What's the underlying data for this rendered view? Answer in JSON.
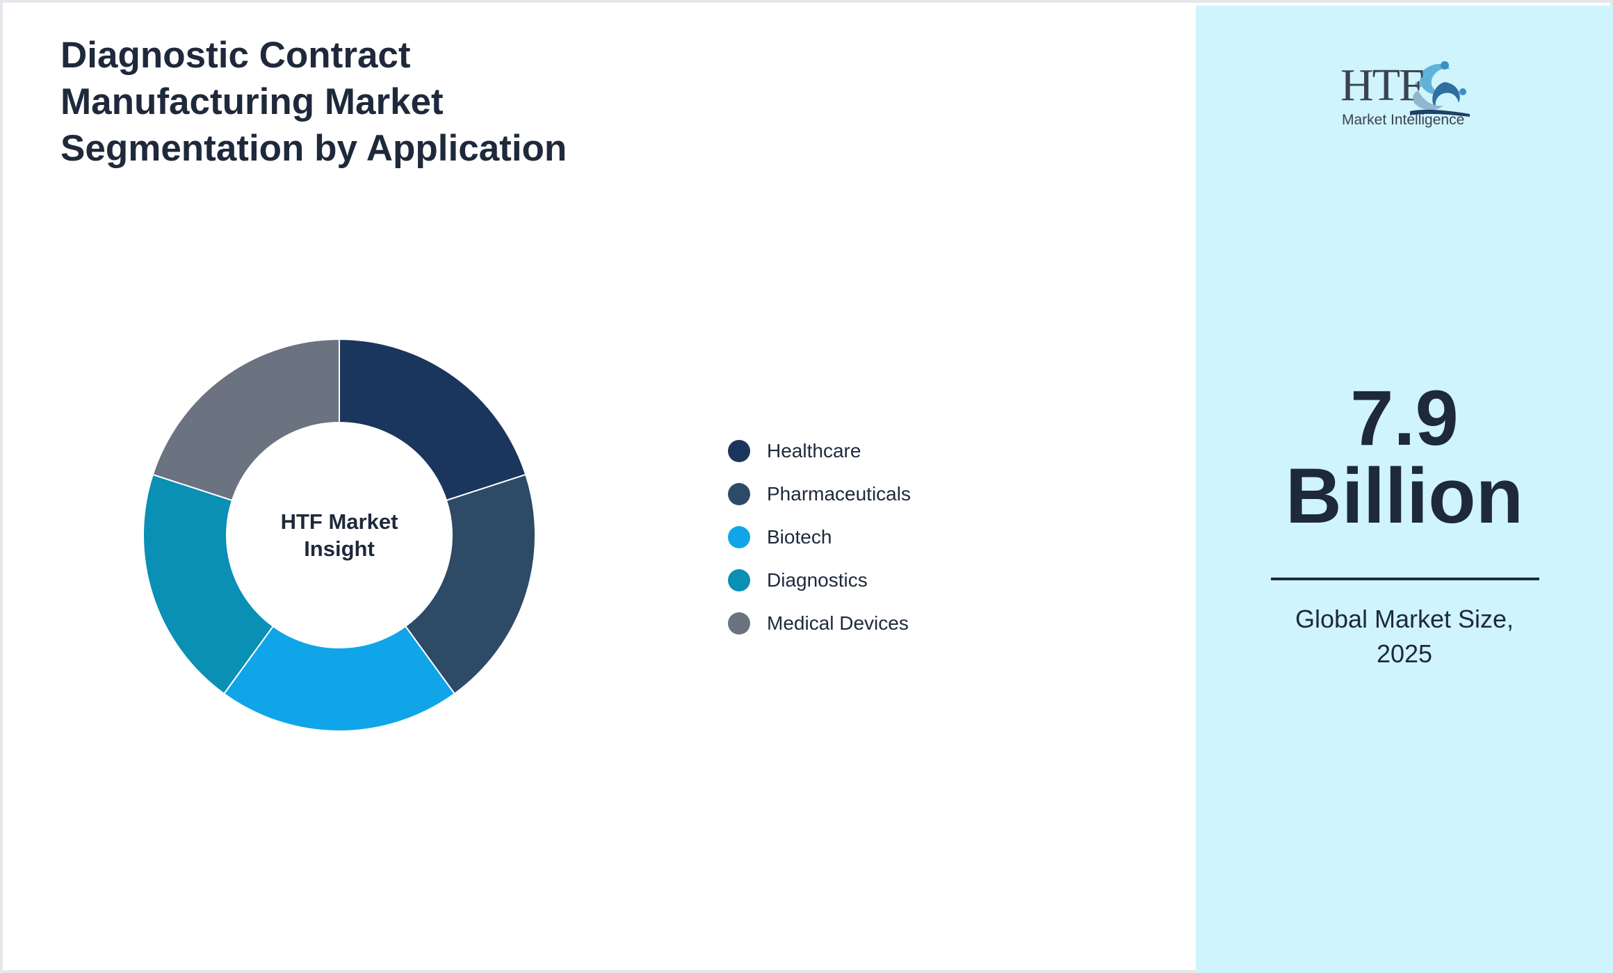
{
  "title_lines": [
    "Diagnostic Contract",
    "Manufacturing Market",
    "Segmentation by Application"
  ],
  "center_label_lines": [
    "HTF Market",
    "Insight"
  ],
  "chart_data": {
    "type": "pie",
    "categories": [
      "Healthcare",
      "Pharmaceuticals",
      "Biotech",
      "Diagnostics",
      "Medical Devices"
    ],
    "values": [
      20,
      20,
      20,
      20,
      20
    ],
    "colors": [
      "#1b365d",
      "#2d4a66",
      "#10a5e8",
      "#0a8fb5",
      "#6b7280"
    ],
    "donut": true,
    "legend_position": "right",
    "slice_border_color": "#ffffff"
  },
  "side_panel": {
    "logo": {
      "letters": "HTF",
      "tagline": "Market Intelligence",
      "icon": "people-swirl-icon"
    },
    "value_lines": [
      "7.9",
      "Billion"
    ],
    "caption_lines": [
      "Global Market Size,",
      "2025"
    ],
    "background_color": "#cff4fc"
  }
}
